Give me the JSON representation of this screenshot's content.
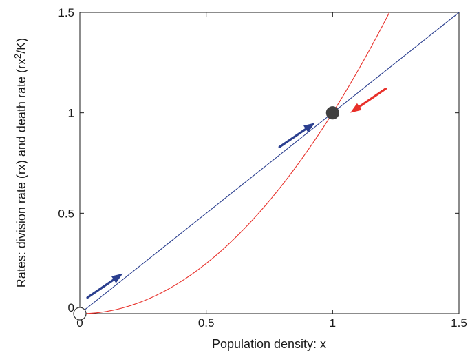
{
  "chart_data": {
    "type": "line",
    "xlabel": "Population density: x",
    "ylabel_main": "Rates: division rate (rx) and death rate (rx",
    "ylabel_sup": "2",
    "ylabel_end": "/K)",
    "xlim": [
      0,
      1.5
    ],
    "ylim": [
      0,
      1.5
    ],
    "xticks": [
      0,
      0.5,
      1,
      1.5
    ],
    "xtick_labels": [
      "0",
      "0.5",
      "1",
      "1.5"
    ],
    "yticks": [
      0,
      0.5,
      1,
      1.5
    ],
    "ytick_labels": [
      "0",
      "0.5",
      "1",
      "1.5"
    ],
    "grid": false,
    "series": [
      {
        "x": [
          0,
          1.5
        ],
        "y": [
          0,
          1.5
        ],
        "color": "#2b3f8f"
      },
      {
        "function": "x^2",
        "x_range": [
          0,
          1.23
        ],
        "color": "#e8302a"
      }
    ],
    "points": [
      {
        "x": 0,
        "y": 0,
        "fill": "#ffffff",
        "stroke": "#333333"
      },
      {
        "x": 1,
        "y": 1,
        "fill": "#404040",
        "stroke": "#404040"
      }
    ],
    "arrows": [
      {
        "from": [
          0.03,
          0.08
        ],
        "to": [
          0.17,
          0.2
        ],
        "color": "#2b3f8f"
      },
      {
        "from": [
          0.79,
          0.83
        ],
        "to": [
          0.93,
          0.95
        ],
        "color": "#2b3f8f"
      },
      {
        "from": [
          1.21,
          1.12
        ],
        "to": [
          1.07,
          1.0
        ],
        "color": "#e8302a"
      }
    ]
  }
}
